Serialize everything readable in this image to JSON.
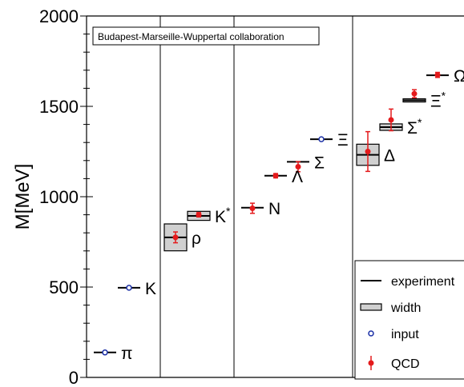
{
  "chart_data": {
    "type": "scatter",
    "title": "",
    "annotation": "Budapest-Marseille-Wuppertal collaboration",
    "xlabel": "",
    "ylabel": "M[MeV]",
    "ylim": [
      0,
      2000
    ],
    "yticks": [
      "0",
      "500",
      "1000",
      "1500",
      "2000"
    ],
    "colors": {
      "qcd": "#e41a1c",
      "input": "#1a2fa6",
      "experiment": "#000000",
      "width_fill": "#d0d0d0"
    },
    "particles": [
      {
        "label": "π",
        "sup": "",
        "kind": "input",
        "mass": 138,
        "value": 138,
        "error": 0,
        "width": 0,
        "group": 1
      },
      {
        "label": "K",
        "sup": "",
        "kind": "input",
        "mass": 496,
        "value": 496,
        "error": 0,
        "width": 0,
        "group": 1
      },
      {
        "label": "ρ",
        "sup": "",
        "kind": "qcd",
        "mass": 775,
        "value": 775,
        "error": 30,
        "width": 149,
        "group": 2
      },
      {
        "label": "K",
        "sup": "*",
        "kind": "qcd",
        "mass": 894,
        "value": 900,
        "error": 12,
        "width": 50,
        "group": 2
      },
      {
        "label": "N",
        "sup": "",
        "kind": "qcd",
        "mass": 939,
        "value": 936,
        "error": 28,
        "width": 0,
        "group": 3
      },
      {
        "label": "Λ",
        "sup": "",
        "kind": "qcd",
        "mass": 1116,
        "value": 1116,
        "error": 12,
        "width": 0,
        "group": 3
      },
      {
        "label": "Σ",
        "sup": "",
        "kind": "qcd",
        "mass": 1193,
        "value": 1166,
        "error": 28,
        "width": 0,
        "group": 3
      },
      {
        "label": "Ξ",
        "sup": "",
        "kind": "input",
        "mass": 1318,
        "value": 1318,
        "error": 0,
        "width": 0,
        "group": 3
      },
      {
        "label": "Δ",
        "sup": "",
        "kind": "qcd",
        "mass": 1232,
        "value": 1250,
        "error": 110,
        "width": 117,
        "group": 4
      },
      {
        "label": "Σ",
        "sup": "*",
        "kind": "qcd",
        "mass": 1385,
        "value": 1425,
        "error": 60,
        "width": 36,
        "group": 4
      },
      {
        "label": "Ξ",
        "sup": "*",
        "kind": "qcd",
        "mass": 1533,
        "value": 1570,
        "error": 22,
        "width": 9,
        "group": 4
      },
      {
        "label": "Ω",
        "sup": "",
        "kind": "qcd",
        "mass": 1672,
        "value": 1674,
        "error": 14,
        "width": 0,
        "group": 4
      }
    ],
    "legend": {
      "placement": "bottom-right",
      "entries": [
        "experiment",
        "width",
        "input",
        "QCD"
      ]
    },
    "grid": false
  }
}
